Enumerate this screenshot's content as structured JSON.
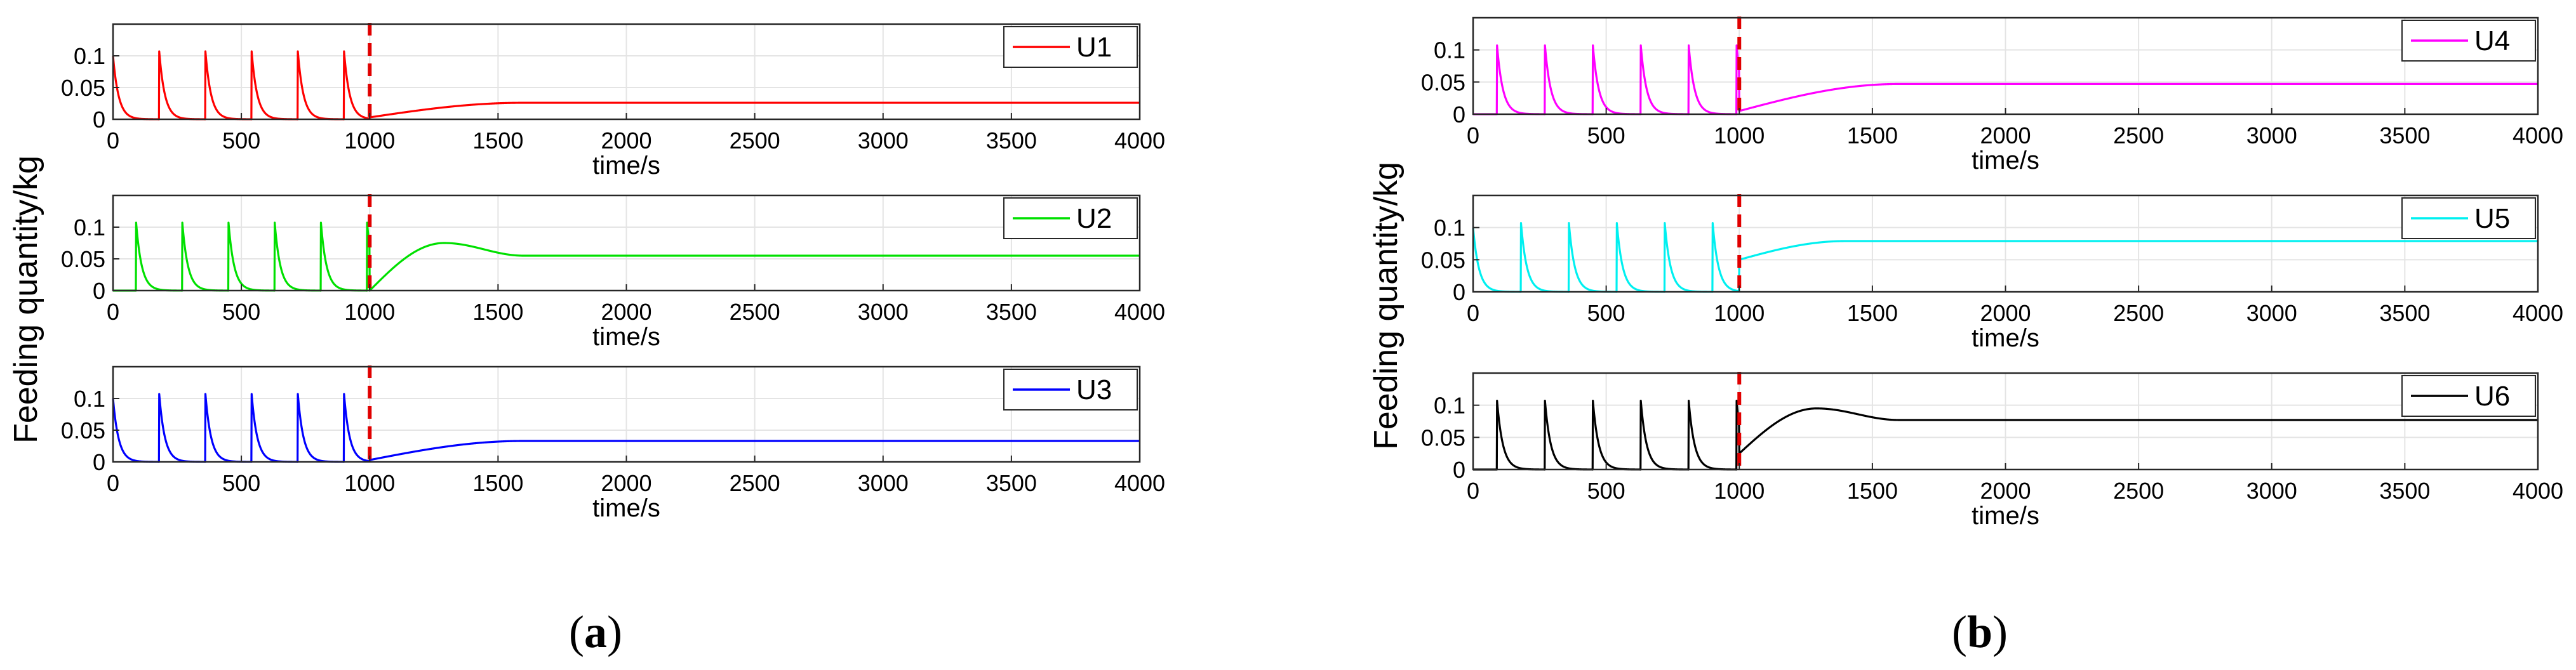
{
  "ylabel": "Feeding quantity/kg",
  "xlabel": "time/s",
  "xticks": [
    "0",
    "500",
    "1000",
    "1500",
    "2000",
    "2500",
    "3000",
    "3500",
    "4000"
  ],
  "yticks": [
    "0",
    "0.05",
    "0.1"
  ],
  "xlim": [
    0,
    4000
  ],
  "ylim": [
    0,
    0.15
  ],
  "switch_time": 1000,
  "panels": [
    {
      "label": "a",
      "caption_open": "(",
      "caption_close": ")"
    },
    {
      "label": "b",
      "caption_open": "(",
      "caption_close": ")"
    }
  ],
  "chart_data": [
    {
      "type": "line",
      "panel": "a",
      "name": "U1",
      "color": "#ff0000",
      "pulse_start": 180,
      "pulse_period": 180,
      "peak": 0.107,
      "pre_start": 0.1,
      "post_start": 0.003,
      "overshoot": 0,
      "final": 0.026,
      "settle": 1600
    },
    {
      "type": "line",
      "panel": "a",
      "name": "U2",
      "color": "#00e000",
      "pulse_start": 90,
      "pulse_period": 180,
      "peak": 0.107,
      "pre_start": 0.0,
      "post_start": 0.0,
      "overshoot": 0.075,
      "final": 0.055,
      "settle": 1600
    },
    {
      "type": "line",
      "panel": "a",
      "name": "U3",
      "color": "#0000ff",
      "pulse_start": 180,
      "pulse_period": 180,
      "peak": 0.107,
      "pre_start": 0.1,
      "post_start": 0.003,
      "overshoot": 0,
      "final": 0.033,
      "settle": 1600
    },
    {
      "type": "line",
      "panel": "b",
      "name": "U4",
      "color": "#ff00ff",
      "pulse_start": 90,
      "pulse_period": 180,
      "peak": 0.107,
      "pre_start": 0.0,
      "post_start": 0.005,
      "overshoot": 0,
      "final": 0.047,
      "settle": 1600
    },
    {
      "type": "line",
      "panel": "b",
      "name": "U5",
      "color": "#00f0f0",
      "pulse_start": 180,
      "pulse_period": 180,
      "peak": 0.107,
      "pre_start": 0.1,
      "post_start": 0.05,
      "overshoot": 0,
      "final": 0.079,
      "settle": 1400
    },
    {
      "type": "line",
      "panel": "b",
      "name": "U6",
      "color": "#000000",
      "pulse_start": 90,
      "pulse_period": 180,
      "peak": 0.107,
      "pre_start": 0.0,
      "post_start": 0.025,
      "overshoot": 0.095,
      "final": 0.077,
      "settle": 1600
    }
  ]
}
